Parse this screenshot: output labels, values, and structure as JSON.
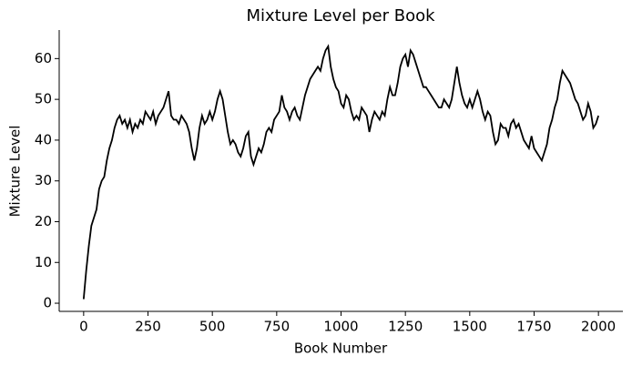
{
  "chart_data": {
    "type": "line",
    "title": "Mixture Level per Book",
    "xlabel": "Book Number",
    "ylabel": "Mixture Level",
    "x": [
      0,
      10,
      20,
      30,
      40,
      50,
      60,
      70,
      80,
      90,
      100,
      110,
      120,
      130,
      140,
      150,
      160,
      170,
      180,
      190,
      200,
      210,
      220,
      230,
      240,
      250,
      260,
      270,
      280,
      290,
      300,
      310,
      320,
      330,
      340,
      350,
      360,
      370,
      380,
      390,
      400,
      410,
      420,
      430,
      440,
      450,
      460,
      470,
      480,
      490,
      500,
      510,
      520,
      530,
      540,
      550,
      560,
      570,
      580,
      590,
      600,
      610,
      620,
      630,
      640,
      650,
      660,
      670,
      680,
      690,
      700,
      710,
      720,
      730,
      740,
      750,
      760,
      770,
      780,
      790,
      800,
      810,
      820,
      830,
      840,
      850,
      860,
      870,
      880,
      890,
      900,
      910,
      920,
      930,
      940,
      950,
      960,
      970,
      980,
      990,
      1000,
      1010,
      1020,
      1030,
      1040,
      1050,
      1060,
      1070,
      1080,
      1090,
      1100,
      1110,
      1120,
      1130,
      1140,
      1150,
      1160,
      1170,
      1180,
      1190,
      1200,
      1210,
      1220,
      1230,
      1240,
      1250,
      1260,
      1270,
      1280,
      1290,
      1300,
      1310,
      1320,
      1330,
      1340,
      1350,
      1360,
      1370,
      1380,
      1390,
      1400,
      1410,
      1420,
      1430,
      1440,
      1450,
      1460,
      1470,
      1480,
      1490,
      1500,
      1510,
      1520,
      1530,
      1540,
      1550,
      1560,
      1570,
      1580,
      1590,
      1600,
      1610,
      1620,
      1630,
      1640,
      1650,
      1660,
      1670,
      1680,
      1690,
      1700,
      1710,
      1720,
      1730,
      1740,
      1750,
      1760,
      1770,
      1780,
      1790,
      1800,
      1810,
      1820,
      1830,
      1840,
      1850,
      1860,
      1870,
      1880,
      1890,
      1900,
      1910,
      1920,
      1930,
      1940,
      1950,
      1960,
      1970,
      1980,
      1990,
      2000
    ],
    "series": [
      {
        "color": "#000000",
        "values": [
          1,
          8,
          14,
          19,
          21,
          23,
          28,
          30,
          31,
          35,
          38,
          40,
          43,
          45,
          46,
          44,
          45,
          43,
          45,
          42,
          44,
          43,
          45,
          44,
          47,
          46,
          45,
          47,
          44,
          46,
          47,
          48,
          50,
          52,
          46,
          45,
          45,
          44,
          46,
          45,
          44,
          42,
          38,
          35,
          38,
          43,
          46,
          44,
          45,
          47,
          45,
          47,
          50,
          52,
          50,
          46,
          42,
          39,
          40,
          39,
          37,
          36,
          38,
          41,
          42,
          36,
          34,
          36,
          38,
          37,
          39,
          42,
          43,
          42,
          45,
          46,
          47,
          51,
          48,
          47,
          45,
          47,
          48,
          46,
          45,
          48,
          51,
          53,
          55,
          56,
          57,
          58,
          57,
          60,
          62,
          63,
          58,
          55,
          53,
          52,
          49,
          48,
          51,
          50,
          47,
          45,
          46,
          45,
          48,
          47,
          46,
          42,
          45,
          47,
          46,
          45,
          47,
          46,
          50,
          53,
          51,
          51,
          54,
          58,
          60,
          61,
          58,
          62,
          61,
          59,
          57,
          55,
          53,
          53,
          52,
          51,
          50,
          49,
          48,
          48,
          50,
          49,
          48,
          50,
          54,
          58,
          54,
          51,
          49,
          48,
          50,
          48,
          50,
          52,
          50,
          47,
          45,
          47,
          46,
          42,
          39,
          40,
          44,
          43,
          43,
          41,
          44,
          45,
          43,
          44,
          42,
          40,
          39,
          38,
          41,
          38,
          37,
          36,
          35,
          37,
          39,
          43,
          45,
          48,
          50,
          54,
          57,
          56,
          55,
          54,
          52,
          50,
          49,
          47,
          45,
          46,
          49,
          47,
          43,
          44,
          46
        ]
      }
    ],
    "xlim": [
      -95,
      2095
    ],
    "ylim": [
      -2,
      67
    ],
    "xticks": [
      0,
      250,
      500,
      750,
      1000,
      1250,
      1500,
      1750,
      2000
    ],
    "yticks": [
      0,
      10,
      20,
      30,
      40,
      50,
      60
    ]
  }
}
